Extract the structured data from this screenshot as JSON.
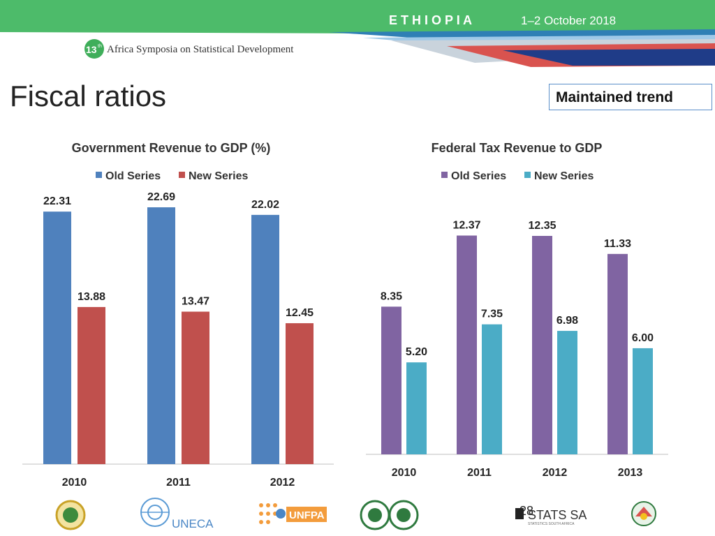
{
  "header": {
    "country": "E T H I O P I A",
    "dates": "1–2 October 2018",
    "symposium_number": "13",
    "symposium_suffix": "th",
    "symposium_title": "Africa Symposia on Statistical Development"
  },
  "slide": {
    "title": "Fiscal ratios",
    "callout": "Maintained trend",
    "page_number": "28"
  },
  "footer": {
    "logo_uneca": "UNECA",
    "logo_unfpa": "UNFPA",
    "logo_stats_sa": "STATS SA",
    "logo_stats_sa_sub": "STATISTICS SOUTH AFRICA"
  },
  "colors": {
    "banner_green": "#4dbb6a",
    "old_series_left": "#4f81bd",
    "new_series_left": "#c0504d",
    "old_series_right": "#8064a2",
    "new_series_right": "#4bacc6"
  },
  "chart_data": [
    {
      "type": "bar",
      "title": "Government Revenue to GDP (%)",
      "categories": [
        "2010",
        "2011",
        "2012"
      ],
      "series": [
        {
          "name": "Old Series",
          "values": [
            22.31,
            22.69,
            22.02
          ],
          "labels": [
            "22.31",
            "22.69",
            "22.02"
          ]
        },
        {
          "name": "New Series",
          "values": [
            13.88,
            13.47,
            12.45
          ],
          "labels": [
            "13.88",
            "13.47",
            "12.45"
          ]
        }
      ],
      "ylim": [
        0,
        23
      ],
      "legend": "top",
      "grid": false
    },
    {
      "type": "bar",
      "title": "Federal Tax Revenue to GDP",
      "categories": [
        "2010",
        "2011",
        "2012",
        "2013"
      ],
      "series": [
        {
          "name": "Old Series",
          "values": [
            8.35,
            12.37,
            12.35,
            11.33
          ],
          "labels": [
            "8.35",
            "12.37",
            "12.35",
            "11.33"
          ]
        },
        {
          "name": "New Series",
          "values": [
            5.2,
            7.35,
            6.98,
            6.0
          ],
          "labels": [
            "5.20",
            "7.35",
            "6.98",
            "6.00"
          ]
        }
      ],
      "ylim": [
        0,
        13.1
      ],
      "legend": "top",
      "grid": false
    }
  ]
}
